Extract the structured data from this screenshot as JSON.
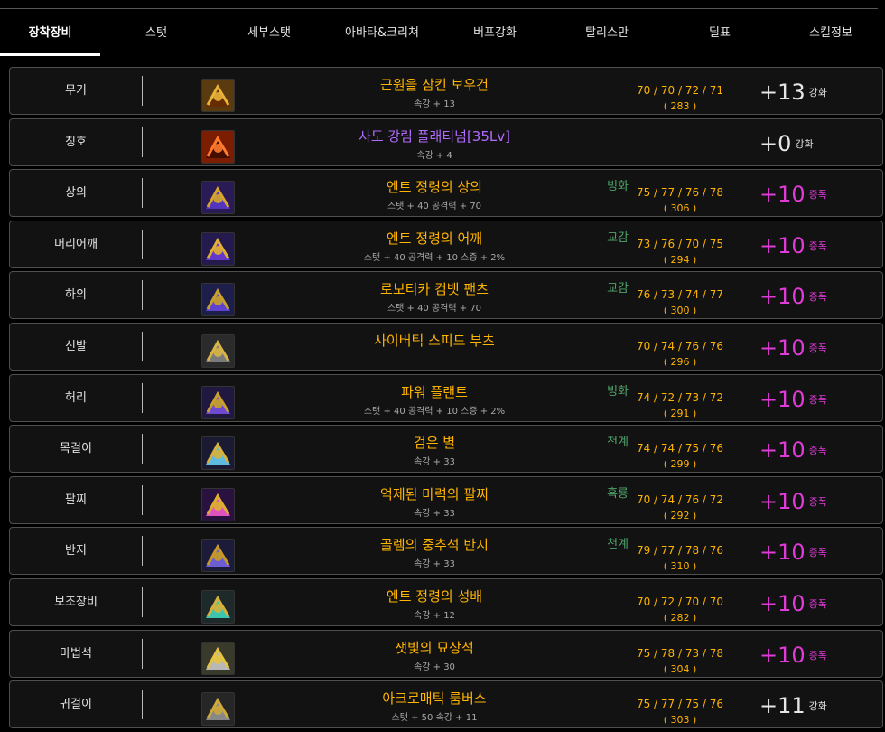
{
  "tabs": [
    {
      "label": "장착장비",
      "active": true
    },
    {
      "label": "스탯"
    },
    {
      "label": "세부스탯"
    },
    {
      "label": "아바타&크리쳐"
    },
    {
      "label": "버프강화"
    },
    {
      "label": "탈리스만"
    },
    {
      "label": "딜표"
    },
    {
      "label": "스킬정보"
    }
  ],
  "colors": {
    "item_name": "#ffb400",
    "title_name": "#b36bff",
    "amplify": "#e03bd8",
    "element": "#50a36b"
  },
  "equipment": [
    {
      "slot": "무기",
      "icon": "weapon-icon",
      "name": "근원을 삼킨 보우건",
      "stat": "속강 + 13",
      "element": "",
      "values": "70 / 70 / 72 / 71",
      "total": "( 283 )",
      "enhance_value": "+13",
      "enhance_kind": "강화",
      "amplified": false
    },
    {
      "slot": "칭호",
      "icon": "title-icon",
      "name": "사도 강림 플래티넘[35Lv]",
      "stat": "속강 + 4",
      "element": "",
      "values": "",
      "total": "",
      "enhance_value": "+0",
      "enhance_kind": "강화",
      "amplified": false,
      "purple": true
    },
    {
      "slot": "상의",
      "icon": "top-armor-icon",
      "name": "엔트 정령의 상의",
      "stat": "스탯 + 40 공격력 + 70",
      "element": "빙화",
      "values": "75 / 77 / 76 / 78",
      "total": "( 306 )",
      "enhance_value": "+10",
      "enhance_kind": "증폭",
      "amplified": true
    },
    {
      "slot": "머리어깨",
      "icon": "shoulder-armor-icon",
      "name": "엔트 정령의 어깨",
      "stat": "스탯 + 40 공격력 + 10 스증 + 2%",
      "element": "교감",
      "values": "73 / 76 / 70 / 75",
      "total": "( 294 )",
      "enhance_value": "+10",
      "enhance_kind": "증폭",
      "amplified": true
    },
    {
      "slot": "하의",
      "icon": "pants-icon",
      "name": "로보티카 컴뱃 팬츠",
      "stat": "스탯 + 40 공격력 + 70",
      "element": "교감",
      "values": "76 / 73 / 74 / 77",
      "total": "( 300 )",
      "enhance_value": "+10",
      "enhance_kind": "증폭",
      "amplified": true
    },
    {
      "slot": "신발",
      "icon": "boots-icon",
      "name": "사이버틱 스피드 부츠",
      "stat": "",
      "element": "",
      "values": "70 / 74 / 76 / 76",
      "total": "( 296 )",
      "enhance_value": "+10",
      "enhance_kind": "증폭",
      "amplified": true
    },
    {
      "slot": "허리",
      "icon": "belt-icon",
      "name": "파워 플랜트",
      "stat": "스탯 + 40 공격력 + 10 스증 + 2%",
      "element": "빙화",
      "values": "74 / 72 / 73 / 72",
      "total": "( 291 )",
      "enhance_value": "+10",
      "enhance_kind": "증폭",
      "amplified": true
    },
    {
      "slot": "목걸이",
      "icon": "necklace-icon",
      "name": "검은 별",
      "stat": "속강 + 33",
      "element": "천계",
      "values": "74 / 74 / 75 / 76",
      "total": "( 299 )",
      "enhance_value": "+10",
      "enhance_kind": "증폭",
      "amplified": true
    },
    {
      "slot": "팔찌",
      "icon": "bracelet-icon",
      "name": "억제된 마력의 팔찌",
      "stat": "속강 + 33",
      "element": "흑룡",
      "values": "70 / 74 / 76 / 72",
      "total": "( 292 )",
      "enhance_value": "+10",
      "enhance_kind": "증폭",
      "amplified": true
    },
    {
      "slot": "반지",
      "icon": "ring-icon",
      "name": "골렘의 중추석 반지",
      "stat": "속강 + 33",
      "element": "천계",
      "values": "79 / 77 / 78 / 76",
      "total": "( 310 )",
      "enhance_value": "+10",
      "enhance_kind": "증폭",
      "amplified": true
    },
    {
      "slot": "보조장비",
      "icon": "sub-equipment-icon",
      "name": "엔트 정령의 성배",
      "stat": "속강 + 12",
      "element": "",
      "values": "70 / 72 / 70 / 70",
      "total": "( 282 )",
      "enhance_value": "+10",
      "enhance_kind": "증폭",
      "amplified": true
    },
    {
      "slot": "마법석",
      "icon": "magic-stone-icon",
      "name": "잿빛의 묘상석",
      "stat": "속강 + 30",
      "element": "",
      "values": "75 / 78 / 73 / 78",
      "total": "( 304 )",
      "enhance_value": "+10",
      "enhance_kind": "증폭",
      "amplified": true
    },
    {
      "slot": "귀걸이",
      "icon": "earring-icon",
      "name": "아크로매틱 룸버스",
      "stat": "스탯 + 50 속강 + 11",
      "element": "",
      "values": "75 / 77 / 75 / 76",
      "total": "( 303 )",
      "enhance_value": "+11",
      "enhance_kind": "강화",
      "amplified": false
    }
  ]
}
